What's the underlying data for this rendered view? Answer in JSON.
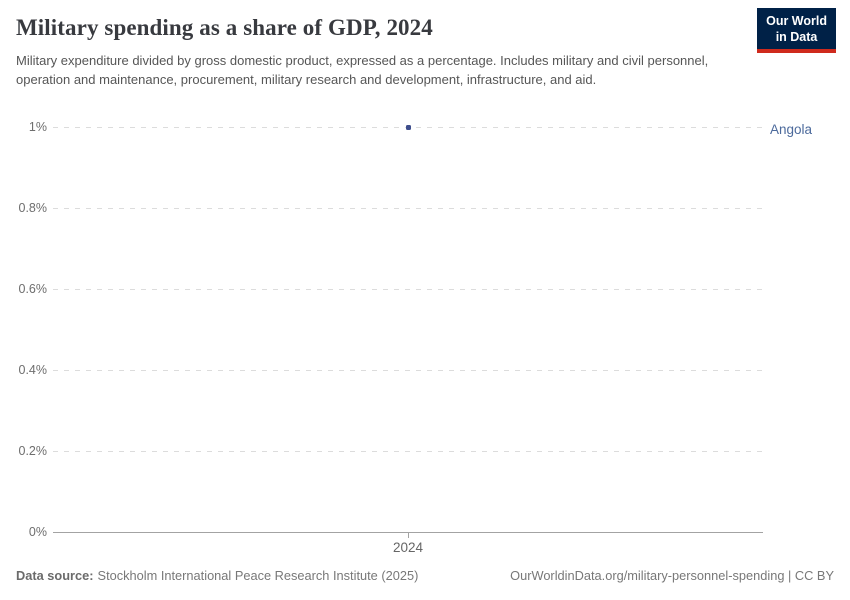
{
  "header": {
    "title": "Military spending as a share of GDP, 2024",
    "subtitle": "Military expenditure divided by gross domestic product, expressed as a percentage. Includes military and civil personnel, operation and maintenance, procurement, military research and development, infrastructure, and aid."
  },
  "logo": {
    "line1": "Our World",
    "line2": "in Data",
    "bg_color": "#002147",
    "accent_color": "#cf2a1d"
  },
  "chart_data": {
    "type": "line",
    "title": "Military spending as a share of GDP, 2024",
    "x": [
      2024
    ],
    "xtick_labels": [
      "2024"
    ],
    "series": [
      {
        "name": "Angola",
        "values": [
          1.0
        ],
        "color": "#3e4e8c",
        "label_color": "#4c6a9c"
      }
    ],
    "ylim": [
      0,
      1
    ],
    "yticks": [
      {
        "value": 0,
        "label": "0%"
      },
      {
        "value": 0.2,
        "label": "0.2%"
      },
      {
        "value": 0.4,
        "label": "0.4%"
      },
      {
        "value": 0.6,
        "label": "0.6%"
      },
      {
        "value": 0.8,
        "label": "0.8%"
      },
      {
        "value": 1,
        "label": "1%"
      }
    ],
    "grid": true,
    "gridline_color": "#dcdcdc",
    "axis_color": "#a3a3a3",
    "ylabel": "",
    "xlabel": ""
  },
  "footer": {
    "source_label": "Data source:",
    "source_text": "Stockholm International Peace Research Institute (2025)",
    "url_text": "OurWorldinData.org/military-personnel-spending | CC BY"
  }
}
